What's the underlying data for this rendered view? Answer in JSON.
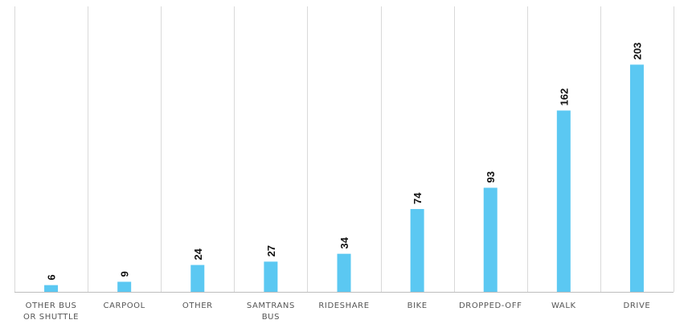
{
  "chart_data": {
    "type": "bar",
    "categories": [
      [
        "OTHER BUS",
        "OR SHUTTLE"
      ],
      [
        "CARPOOL"
      ],
      [
        "OTHER"
      ],
      [
        "SAMTRANS",
        "BUS"
      ],
      [
        "RIDESHARE"
      ],
      [
        "BIKE"
      ],
      [
        "DROPPED-OFF"
      ],
      [
        "WALK"
      ],
      [
        "DRIVE"
      ]
    ],
    "values": [
      6,
      9,
      24,
      27,
      34,
      74,
      93,
      162,
      203
    ],
    "ylim": [
      0,
      255
    ],
    "grid": "vertical category separators",
    "colors": {
      "bar": "#5bc8f2"
    }
  }
}
